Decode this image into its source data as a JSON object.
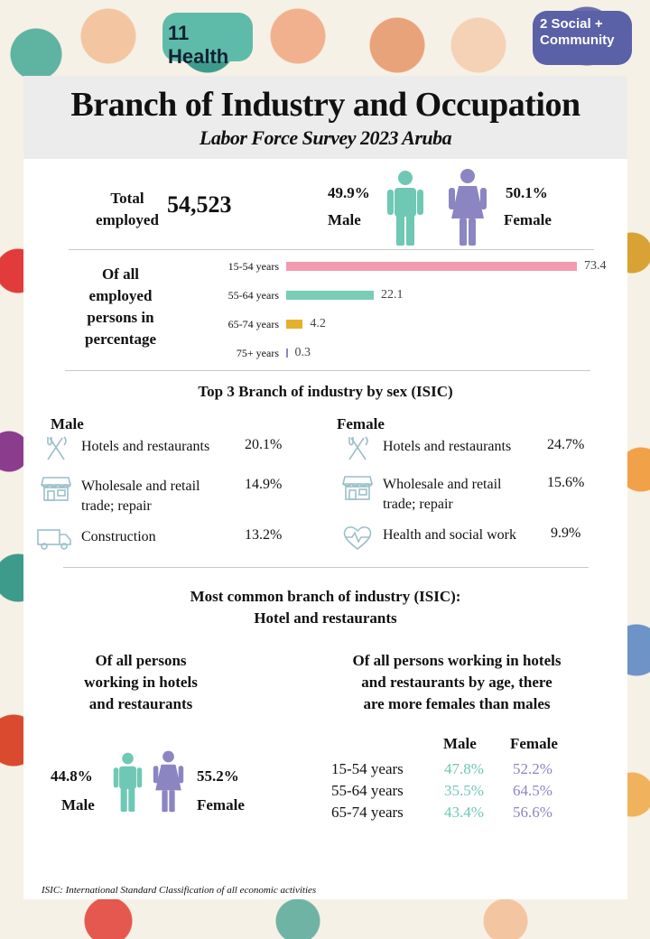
{
  "background": {
    "bubbles": [
      "11 Health",
      "2 Social + Community"
    ]
  },
  "header": {
    "title": "Branch of Industry and Occupation",
    "subtitle": "Labor Force Survey 2023 Aruba"
  },
  "summary": {
    "total_label_line1": "Total",
    "total_label_line2": "employed",
    "total_value": "54,523",
    "male_pct": "49.9%",
    "male_label": "Male",
    "female_pct": "50.1%",
    "female_label": "Female"
  },
  "age_section": {
    "label_lines": [
      "Of all",
      "employed",
      "persons in",
      "percentage"
    ],
    "rows": [
      {
        "label": "15-54 years",
        "value": 73.4,
        "value_text": "73.4",
        "color": "#f29bb0"
      },
      {
        "label": "55-64 years",
        "value": 22.1,
        "value_text": "22.1",
        "color": "#79cdb6"
      },
      {
        "label": "65-74 years",
        "value": 4.2,
        "value_text": "4.2",
        "color": "#e5b12c"
      },
      {
        "label": "75+ years",
        "value": 0.3,
        "value_text": "0.3",
        "color": "#8b86c2"
      }
    ]
  },
  "top3": {
    "heading": "Top 3 Branch of  industry by sex (ISIC)",
    "male_heading": "Male",
    "female_heading": "Female",
    "male": [
      {
        "icon": "fork-knife-icon",
        "name_lines": [
          "Hotels and restaurants"
        ],
        "pct": "20.1%"
      },
      {
        "icon": "storefront-icon",
        "name_lines": [
          "Wholesale and retail",
          "trade; repair"
        ],
        "pct": "14.9%"
      },
      {
        "icon": "truck-icon",
        "name_lines": [
          "Construction"
        ],
        "pct": "13.2%"
      }
    ],
    "female": [
      {
        "icon": "fork-knife-icon",
        "name_lines": [
          "Hotels and restaurants"
        ],
        "pct": "24.7%"
      },
      {
        "icon": "storefront-icon",
        "name_lines": [
          "Wholesale and retail",
          "trade; repair"
        ],
        "pct": "15.6%"
      },
      {
        "icon": "heart-pulse-icon",
        "name_lines": [
          "Health and social work"
        ],
        "pct": "9.9%"
      }
    ]
  },
  "most_common": {
    "line1": "Most common branch of industry (ISIC):",
    "line2": "Hotel and restaurants"
  },
  "hotels_sex": {
    "heading_lines": [
      "Of all persons",
      "working in hotels",
      "and restaurants"
    ],
    "male_pct": "44.8%",
    "male_label": "Male",
    "female_pct": "55.2%",
    "female_label": "Female"
  },
  "hotels_age": {
    "heading_lines": [
      "Of all persons working in hotels",
      "and restaurants by age, there",
      "are more females than males"
    ],
    "col_male": "Male",
    "col_female": "Female",
    "rows": [
      {
        "age": "15-54 years",
        "male": "47.8%",
        "female": "52.2%"
      },
      {
        "age": "55-64 years",
        "male": "35.5%",
        "female": "64.5%"
      },
      {
        "age": "65-74 years",
        "male": "43.4%",
        "female": "56.6%"
      }
    ]
  },
  "colors": {
    "male": "#6fc8b3",
    "female": "#8b86c2",
    "icon_stroke": "#9bbfc9"
  },
  "footnote": "ISIC: International Standard Classification of  all economic activities",
  "chart_data": {
    "type": "bar",
    "categories": [
      "15-54 years",
      "55-64 years",
      "65-74 years",
      "75+ years"
    ],
    "values": [
      73.4,
      22.1,
      4.2,
      0.3
    ],
    "orientation": "horizontal"
  }
}
